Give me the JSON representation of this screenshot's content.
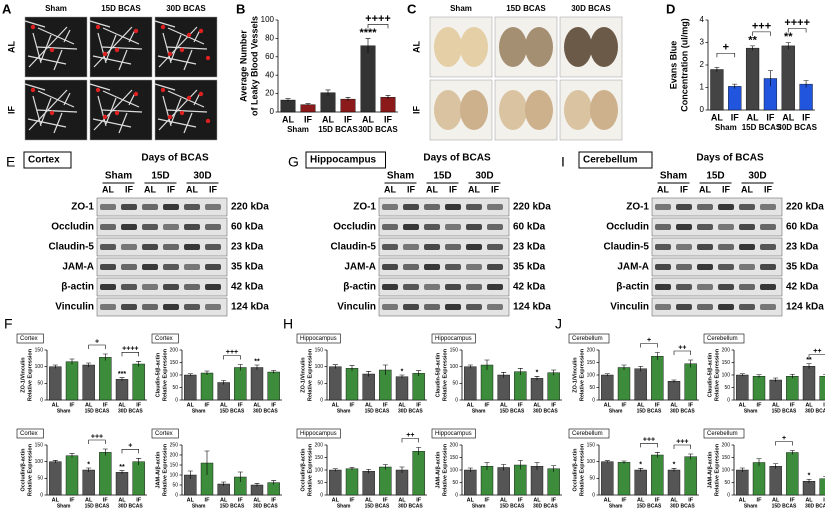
{
  "figure": {
    "A": {
      "letter": "A",
      "columns": [
        "Sham",
        "15D BCAS",
        "30D BCAS"
      ],
      "rows": [
        "AL",
        "IF"
      ]
    },
    "C": {
      "letter": "C",
      "columns": [
        "Sham",
        "15D BCAS",
        "30D BCAS"
      ],
      "rows": [
        "AL",
        "IF"
      ]
    },
    "blots": [
      {
        "letter": "E",
        "region": "Cortex",
        "header": "Days of BCAS",
        "groups": [
          "Sham",
          "15D",
          "30D"
        ],
        "lanes": [
          "AL",
          "IF",
          "AL",
          "IF",
          "AL",
          "IF"
        ],
        "proteins": [
          "ZO-1",
          "Occludin",
          "Claudin-5",
          "JAM-A",
          "β-actin",
          "Vinculin"
        ],
        "sizes": [
          "220 kDa",
          "60 kDa",
          "23 kDa",
          "35 kDa",
          "42 kDa",
          "124 kDa"
        ]
      },
      {
        "letter": "G",
        "region": "Hippocampus",
        "header": "Days of BCAS",
        "groups": [
          "Sham",
          "15D",
          "30D"
        ],
        "lanes": [
          "AL",
          "IF",
          "AL",
          "IF",
          "AL",
          "IF"
        ],
        "proteins": [
          "ZO-1",
          "Occludin",
          "Claudin-5",
          "JAM-A",
          "β-actin",
          "Vinculin"
        ],
        "sizes": [
          "220 kDa",
          "60 kDa",
          "23 kDa",
          "35 kDa",
          "42 kDa",
          "124 kDa"
        ]
      },
      {
        "letter": "I",
        "region": "Cerebellum",
        "header": "Days of BCAS",
        "groups": [
          "Sham",
          "15D",
          "30D"
        ],
        "lanes": [
          "AL",
          "IF",
          "AL",
          "IF",
          "AL",
          "IF"
        ],
        "proteins": [
          "ZO-1",
          "Occludin",
          "Claudin-5",
          "JAM-A",
          "β-actin",
          "Vinculin"
        ],
        "sizes": [
          "220 kDa",
          "60 kDa",
          "23 kDa",
          "35 kDa",
          "42 kDa",
          "124 kDa"
        ]
      }
    ],
    "panels": [
      "F",
      "H",
      "J"
    ]
  },
  "chart_data": [
    {
      "type": "bar",
      "letter": "B",
      "ylabel": [
        "Average Number",
        "of Leaky Blood Vessels"
      ],
      "categories": [
        "AL",
        "IF",
        "AL",
        "IF",
        "AL",
        "IF"
      ],
      "groups": [
        "Sham",
        "15D BCAS",
        "30D BCAS"
      ],
      "values": [
        13,
        8,
        21,
        14,
        72,
        16
      ],
      "errors": [
        1.5,
        1,
        3,
        2,
        8,
        2
      ],
      "colors": [
        "#333333",
        "#8b1a1a"
      ],
      "ylim": [
        0,
        100
      ],
      "yticks": [
        0,
        20,
        40,
        60,
        80,
        100
      ],
      "annotations": [
        {
          "text": "****",
          "at": 4
        },
        {
          "text": "++++",
          "from": 4,
          "to": 5
        }
      ]
    },
    {
      "type": "bar",
      "letter": "D",
      "ylabel": [
        "Evans Blue",
        "Concentration (ul/mg)"
      ],
      "categories": [
        "AL",
        "IF",
        "AL",
        "IF",
        "AL",
        "IF"
      ],
      "groups": [
        "Sham",
        "15D BCAS",
        "30D BCAS"
      ],
      "values": [
        1.8,
        1.05,
        2.75,
        1.4,
        2.85,
        1.15
      ],
      "errors": [
        0.1,
        0.1,
        0.1,
        0.35,
        0.15,
        0.15
      ],
      "colors": [
        "#444444",
        "#2255dd"
      ],
      "ylim": [
        0,
        4
      ],
      "yticks": [
        0,
        1,
        2,
        3,
        4
      ],
      "annotations": [
        {
          "text": "+",
          "from": 0,
          "to": 1
        },
        {
          "text": "**",
          "at": 2
        },
        {
          "text": "+++",
          "from": 2,
          "to": 3
        },
        {
          "text": "**",
          "at": 4
        },
        {
          "text": "++++",
          "from": 4,
          "to": 5
        }
      ]
    },
    {
      "type": "bar",
      "region": "Cortex",
      "ylabel": [
        "ZO-1/Vinculin",
        "Relative Expression"
      ],
      "categories": [
        "AL",
        "IF",
        "AL",
        "IF",
        "AL",
        "IF"
      ],
      "groups": [
        "Sham",
        "15D BCAS",
        "30D BCAS"
      ],
      "values": [
        100,
        115,
        105,
        128,
        62,
        108
      ],
      "errors": [
        5,
        8,
        6,
        10,
        5,
        8
      ],
      "colors": [
        "#555555",
        "#3c8c3c"
      ],
      "ylim": [
        0,
        150
      ],
      "yticks": [
        0,
        50,
        100,
        150
      ],
      "annotations": [
        {
          "text": "***",
          "at": 4
        },
        {
          "text": "+",
          "from": 2,
          "to": 3
        },
        {
          "text": "++++",
          "from": 4,
          "to": 5
        }
      ]
    },
    {
      "type": "bar",
      "region": "Cortex",
      "ylabel": [
        "Claudin-5/β-actin",
        "Relative Expression"
      ],
      "categories": [
        "AL",
        "IF",
        "AL",
        "IF",
        "AL",
        "IF"
      ],
      "groups": [
        "Sham",
        "15D BCAS",
        "30D BCAS"
      ],
      "values": [
        100,
        108,
        70,
        130,
        130,
        112
      ],
      "errors": [
        5,
        8,
        8,
        12,
        10,
        6
      ],
      "colors": [
        "#555555",
        "#3c8c3c"
      ],
      "ylim": [
        0,
        200
      ],
      "yticks": [
        0,
        50,
        100,
        150,
        200
      ],
      "annotations": [
        {
          "text": "+++",
          "from": 2,
          "to": 3
        },
        {
          "text": "**",
          "at": 4
        }
      ]
    },
    {
      "type": "bar",
      "region": "Cortex",
      "ylabel": [
        "Occludin/β-actin",
        "Relative Expression"
      ],
      "categories": [
        "AL",
        "IF",
        "AL",
        "IF",
        "AL",
        "IF"
      ],
      "groups": [
        "Sham",
        "15D BCAS",
        "30D BCAS"
      ],
      "values": [
        100,
        118,
        75,
        128,
        68,
        100
      ],
      "errors": [
        4,
        6,
        6,
        10,
        5,
        10
      ],
      "colors": [
        "#555555",
        "#3c8c3c"
      ],
      "ylim": [
        0,
        150
      ],
      "yticks": [
        0,
        50,
        100,
        150
      ],
      "annotations": [
        {
          "text": "*",
          "at": 2
        },
        {
          "text": "+++",
          "from": 2,
          "to": 3
        },
        {
          "text": "**",
          "at": 4
        },
        {
          "text": "+",
          "from": 4,
          "to": 5
        }
      ]
    },
    {
      "type": "bar",
      "region": "Cortex",
      "ylabel": [
        "JAM-A/β-actin",
        "Relative Expression"
      ],
      "categories": [
        "AL",
        "IF",
        "AL",
        "IF",
        "AL",
        "IF"
      ],
      "groups": [
        "Sham",
        "15D BCAS",
        "30D BCAS"
      ],
      "values": [
        100,
        160,
        55,
        90,
        50,
        62
      ],
      "errors": [
        20,
        60,
        10,
        25,
        8,
        10
      ],
      "colors": [
        "#555555",
        "#3c8c3c"
      ],
      "ylim": [
        0,
        250
      ],
      "yticks": [
        0,
        50,
        100,
        150,
        200,
        250
      ],
      "annotations": []
    },
    {
      "type": "bar",
      "region": "Hippocampus",
      "ylabel": [
        "ZO-1/Vinculin",
        "Relative Expression"
      ],
      "categories": [
        "AL",
        "IF",
        "AL",
        "IF",
        "AL",
        "IF"
      ],
      "groups": [
        "Sham",
        "15D BCAS",
        "30D BCAS"
      ],
      "values": [
        100,
        95,
        78,
        90,
        70,
        80
      ],
      "errors": [
        6,
        8,
        8,
        15,
        5,
        8
      ],
      "colors": [
        "#555555",
        "#3c8c3c"
      ],
      "ylim": [
        0,
        150
      ],
      "yticks": [
        0,
        50,
        100,
        150
      ],
      "annotations": [
        {
          "text": "*",
          "at": 4
        }
      ]
    },
    {
      "type": "bar",
      "region": "Hippocampus",
      "ylabel": [
        "Claudin-5/β-actin",
        "Relative Expression"
      ],
      "categories": [
        "AL",
        "IF",
        "AL",
        "IF",
        "AL",
        "IF"
      ],
      "groups": [
        "Sham",
        "15D BCAS",
        "30D BCAS"
      ],
      "values": [
        100,
        105,
        75,
        85,
        65,
        82
      ],
      "errors": [
        5,
        15,
        8,
        10,
        6,
        8
      ],
      "colors": [
        "#555555",
        "#3c8c3c"
      ],
      "ylim": [
        0,
        150
      ],
      "yticks": [
        0,
        50,
        100,
        150
      ],
      "annotations": [
        {
          "text": "*",
          "at": 4
        }
      ]
    },
    {
      "type": "bar",
      "region": "Hippocampus",
      "ylabel": [
        "Occludin/β-actin",
        "Relative Expression"
      ],
      "categories": [
        "AL",
        "IF",
        "AL",
        "IF",
        "AL",
        "IF"
      ],
      "groups": [
        "Sham",
        "15D BCAS",
        "30D BCAS"
      ],
      "values": [
        100,
        105,
        95,
        112,
        100,
        175
      ],
      "errors": [
        5,
        6,
        8,
        10,
        12,
        15
      ],
      "colors": [
        "#555555",
        "#3c8c3c"
      ],
      "ylim": [
        0,
        200
      ],
      "yticks": [
        0,
        50,
        100,
        150,
        200
      ],
      "annotations": [
        {
          "text": "++",
          "from": 4,
          "to": 5
        }
      ]
    },
    {
      "type": "bar",
      "region": "Hippocampus",
      "ylabel": [
        "JAM-A/β-actin",
        "Relative Expression"
      ],
      "categories": [
        "AL",
        "IF",
        "AL",
        "IF",
        "AL",
        "IF"
      ],
      "groups": [
        "Sham",
        "15D BCAS",
        "30D BCAS"
      ],
      "values": [
        100,
        115,
        110,
        120,
        115,
        105
      ],
      "errors": [
        8,
        15,
        12,
        18,
        15,
        12
      ],
      "colors": [
        "#555555",
        "#3c8c3c"
      ],
      "ylim": [
        0,
        200
      ],
      "yticks": [
        0,
        50,
        100,
        150,
        200
      ],
      "annotations": []
    },
    {
      "type": "bar",
      "region": "Cerebellum",
      "ylabel": [
        "ZO-1/Vinculin",
        "Relative Expression"
      ],
      "categories": [
        "AL",
        "IF",
        "AL",
        "IF",
        "AL",
        "IF"
      ],
      "groups": [
        "Sham",
        "15D BCAS",
        "30D BCAS"
      ],
      "values": [
        100,
        130,
        125,
        175,
        75,
        145
      ],
      "errors": [
        5,
        10,
        10,
        15,
        5,
        15
      ],
      "colors": [
        "#555555",
        "#3c8c3c"
      ],
      "ylim": [
        0,
        200
      ],
      "yticks": [
        0,
        50,
        100,
        150,
        200
      ],
      "annotations": [
        {
          "text": "+",
          "from": 2,
          "to": 3
        },
        {
          "text": "++",
          "from": 4,
          "to": 5
        }
      ]
    },
    {
      "type": "bar",
      "region": "Cerebellum",
      "ylabel": [
        "Claudin-5/β-actin",
        "Relative Expression"
      ],
      "categories": [
        "AL",
        "IF",
        "AL",
        "IF",
        "AL",
        "IF"
      ],
      "groups": [
        "Sham",
        "15D BCAS",
        "30D BCAS"
      ],
      "values": [
        100,
        95,
        80,
        95,
        135,
        95
      ],
      "errors": [
        5,
        6,
        8,
        8,
        10,
        6
      ],
      "colors": [
        "#555555",
        "#3c8c3c"
      ],
      "ylim": [
        0,
        200
      ],
      "yticks": [
        0,
        50,
        100,
        150,
        200
      ],
      "annotations": [
        {
          "text": "**",
          "at": 4
        },
        {
          "text": "++",
          "from": 4,
          "to": 5
        }
      ]
    },
    {
      "type": "bar",
      "region": "Cerebellum",
      "ylabel": [
        "Occludin/β-actin",
        "Relative Expression"
      ],
      "categories": [
        "AL",
        "IF",
        "AL",
        "IF",
        "AL",
        "IF"
      ],
      "groups": [
        "Sham",
        "15D BCAS",
        "30D BCAS"
      ],
      "values": [
        100,
        98,
        75,
        120,
        75,
        115
      ],
      "errors": [
        3,
        4,
        5,
        8,
        5,
        8
      ],
      "colors": [
        "#555555",
        "#3c8c3c"
      ],
      "ylim": [
        0,
        150
      ],
      "yticks": [
        0,
        50,
        100,
        150
      ],
      "annotations": [
        {
          "text": "*",
          "at": 2
        },
        {
          "text": "+++",
          "from": 2,
          "to": 3
        },
        {
          "text": "*",
          "at": 4
        },
        {
          "text": "+++",
          "from": 4,
          "to": 5
        }
      ]
    },
    {
      "type": "bar",
      "region": "Cerebellum",
      "ylabel": [
        "JAM-A/β-actin",
        "Relative Expression"
      ],
      "categories": [
        "AL",
        "IF",
        "AL",
        "IF",
        "AL",
        "IF"
      ],
      "groups": [
        "Sham",
        "15D BCAS",
        "30D BCAS"
      ],
      "values": [
        100,
        130,
        115,
        170,
        55,
        65
      ],
      "errors": [
        8,
        15,
        10,
        8,
        8,
        8
      ],
      "colors": [
        "#555555",
        "#3c8c3c"
      ],
      "ylim": [
        0,
        200
      ],
      "yticks": [
        0,
        50,
        100,
        150,
        200
      ],
      "annotations": [
        {
          "text": "+",
          "from": 2,
          "to": 3
        },
        {
          "text": "*",
          "at": 4
        }
      ]
    }
  ]
}
